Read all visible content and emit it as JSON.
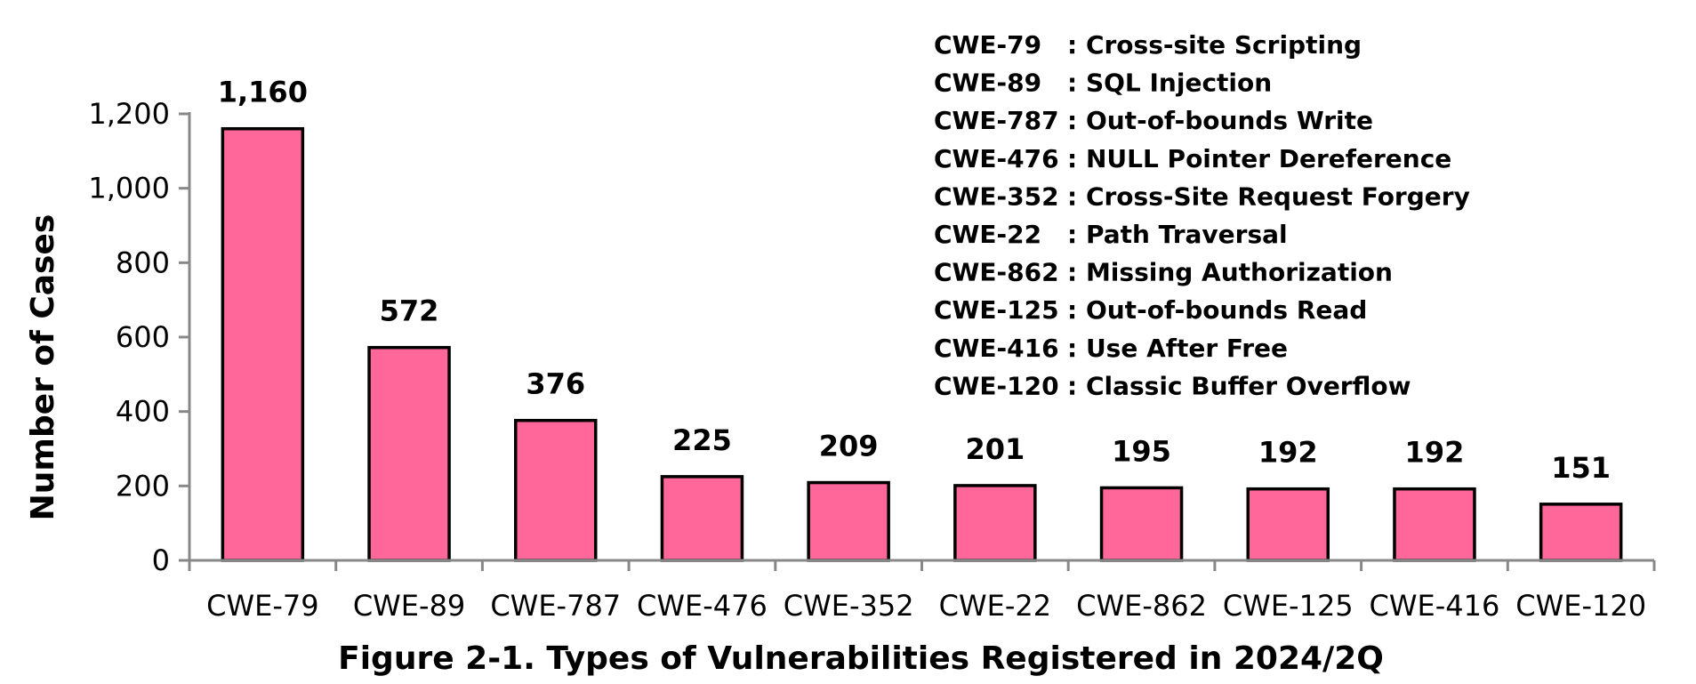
{
  "chart_data": {
    "type": "bar",
    "categories": [
      "CWE-79",
      "CWE-89",
      "CWE-787",
      "CWE-476",
      "CWE-352",
      "CWE-22",
      "CWE-862",
      "CWE-125",
      "CWE-416",
      "CWE-120"
    ],
    "values": [
      1160,
      572,
      376,
      225,
      209,
      201,
      195,
      192,
      192,
      151
    ],
    "data_labels": [
      "1,160",
      "572",
      "376",
      "225",
      "209",
      "201",
      "195",
      "192",
      "192",
      "151"
    ],
    "yticks": [
      0,
      200,
      400,
      600,
      800,
      1000,
      1200
    ],
    "ytick_labels": [
      "0",
      "200",
      "400",
      "600",
      "800",
      "1,000",
      "1,200"
    ],
    "ylim": [
      0,
      1200
    ],
    "ylabel": "Number of Cases",
    "xlabel": "",
    "title": "",
    "caption": "Figure 2-1. Types of Vulnerabilities Registered in 2024/2Q",
    "bar_color": "#FF6699",
    "bar_edge_color": "#000000",
    "axis_color": "#888888",
    "grid": false,
    "legend_placement": "top-right",
    "annotations": [
      {
        "code": "CWE-79",
        "name": ": Cross-site Scripting"
      },
      {
        "code": "CWE-89",
        "name": ": SQL Injection"
      },
      {
        "code": "CWE-787",
        "name": ": Out-of-bounds Write"
      },
      {
        "code": "CWE-476",
        "name": ": NULL Pointer Dereference"
      },
      {
        "code": "CWE-352",
        "name": ": Cross-Site Request Forgery"
      },
      {
        "code": "CWE-22",
        "name": ": Path Traversal"
      },
      {
        "code": "CWE-862",
        "name": ": Missing Authorization"
      },
      {
        "code": "CWE-125",
        "name": ": Out-of-bounds Read"
      },
      {
        "code": "CWE-416",
        "name": ": Use After Free"
      },
      {
        "code": "CWE-120",
        "name": ": Classic Buffer Overflow"
      }
    ]
  }
}
